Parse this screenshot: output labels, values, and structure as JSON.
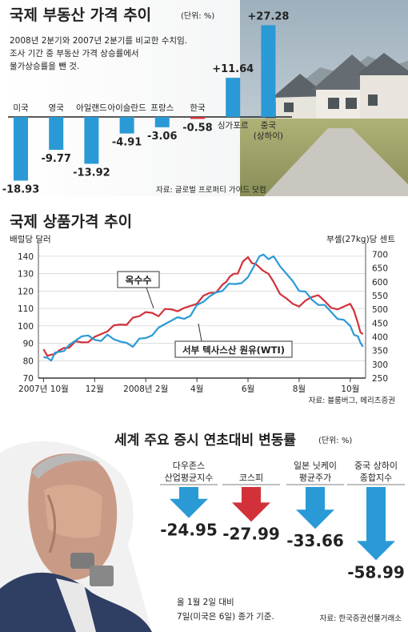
{
  "colors": {
    "bar": "#2a9ad6",
    "red": "#d2313a",
    "blue": "#2a9ad6",
    "corn": "#d2313a"
  },
  "chart_data": [
    {
      "type": "bar",
      "title": "국제 부동산 가격 추이",
      "unit": "(단위: %)",
      "notes": [
        "2008년 2분기와 2007년 2분기를 비교한 수치임.",
        "조사 기간 중 부동산 가격 상승률에서",
        "물가상승률을 뺀 것."
      ],
      "categories": [
        "미국",
        "영국",
        "아일랜드",
        "아이슬란드",
        "프랑스",
        "한국",
        "싱가포르",
        "중국 (상하이)"
      ],
      "category_lines": [
        [
          "미국"
        ],
        [
          "영국"
        ],
        [
          "아일랜드"
        ],
        [
          "아이슬란드"
        ],
        [
          "프랑스"
        ],
        [
          "한국"
        ],
        [
          "싱가포르"
        ],
        [
          "중국",
          "(상하이)"
        ]
      ],
      "values": [
        -18.93,
        -9.77,
        -13.92,
        -4.91,
        -3.06,
        -0.58,
        11.64,
        27.28
      ],
      "value_labels": [
        "-18.93",
        "-9.77",
        "-13.92",
        "-4.91",
        "-3.06",
        "-0.58",
        "+11.64",
        "+27.28"
      ],
      "highlight_index": 5,
      "source": "자료: 글로벌 프로퍼티 가이드 닷컴"
    },
    {
      "type": "line",
      "title": "국제 상품가격 추이",
      "ylabel": "배럴당 달러",
      "y2label": "부셸(27kg)당 센트",
      "x_ticks": [
        "2007년 10월",
        "12월",
        "2008년 2월",
        "4월",
        "6월",
        "8월",
        "10월"
      ],
      "x_tick_months": [
        0,
        2,
        4,
        6,
        8,
        10,
        12
      ],
      "x_range": [
        -0.2,
        12.6
      ],
      "yticks": [
        70,
        80,
        90,
        100,
        110,
        120,
        130,
        140
      ],
      "y2ticks": [
        250,
        300,
        350,
        400,
        450,
        500,
        550,
        600,
        650,
        700
      ],
      "ylim": [
        70,
        145
      ],
      "y2lim": [
        250,
        725
      ],
      "series": [
        {
          "name": "옥수수",
          "axis": "right",
          "x": [
            0,
            0.3,
            0.6,
            1,
            1.5,
            2,
            2.5,
            3,
            3.5,
            4,
            4.5,
            5,
            5.5,
            6,
            6.5,
            7,
            7.3,
            7.6,
            8,
            8.3,
            8.6,
            9,
            9.5,
            10,
            10.5,
            11,
            11.5,
            12,
            12.3,
            12.5
          ],
          "y": [
            355,
            335,
            350,
            360,
            380,
            400,
            420,
            445,
            470,
            490,
            475,
            500,
            505,
            520,
            560,
            590,
            620,
            630,
            690,
            665,
            640,
            600,
            540,
            510,
            545,
            530,
            500,
            520,
            450,
            410
          ]
        },
        {
          "name": "서부 텍사스산 원유(WTI)",
          "axis": "left",
          "x": [
            0,
            0.3,
            0.6,
            1,
            1.5,
            2,
            2.5,
            3,
            3.5,
            4,
            4.5,
            5,
            5.5,
            6,
            6.5,
            7,
            7.5,
            8,
            8.3,
            8.6,
            9,
            9.5,
            10,
            10.5,
            11,
            11.5,
            12,
            12.3,
            12.5
          ],
          "y": [
            82,
            80,
            85,
            89,
            94,
            92,
            95,
            91,
            88,
            93,
            99,
            103,
            104,
            112,
            117,
            120,
            124,
            128,
            136,
            141,
            140,
            130,
            120,
            115,
            112,
            104,
            100,
            94,
            88
          ]
        }
      ],
      "source": "자료: 블룸버그, 메리츠증권"
    },
    {
      "type": "bar",
      "title": "세계 주요 증시 연초대비 변동률",
      "unit": "(단위: %)",
      "categories": [
        "다우존스 산업평균지수",
        "코스피",
        "일본 닛케이 평균주가",
        "중국 상하이 종합지수"
      ],
      "category_lines": [
        [
          "다우존스",
          "산업평균지수"
        ],
        [
          "코스피"
        ],
        [
          "일본 닛케이",
          "평균주가"
        ],
        [
          "중국 상하이",
          "종합지수"
        ]
      ],
      "values": [
        -24.95,
        -27.99,
        -33.66,
        -58.99
      ],
      "value_labels": [
        "-24.95",
        "-27.99",
        "-33.66",
        "-58.99"
      ],
      "highlight_index": 1,
      "notes": [
        "올 1월 2일 대비",
        "7일(미국은 6일) 종가 기준."
      ],
      "source": "자료: 한국증권선물거래소"
    }
  ]
}
